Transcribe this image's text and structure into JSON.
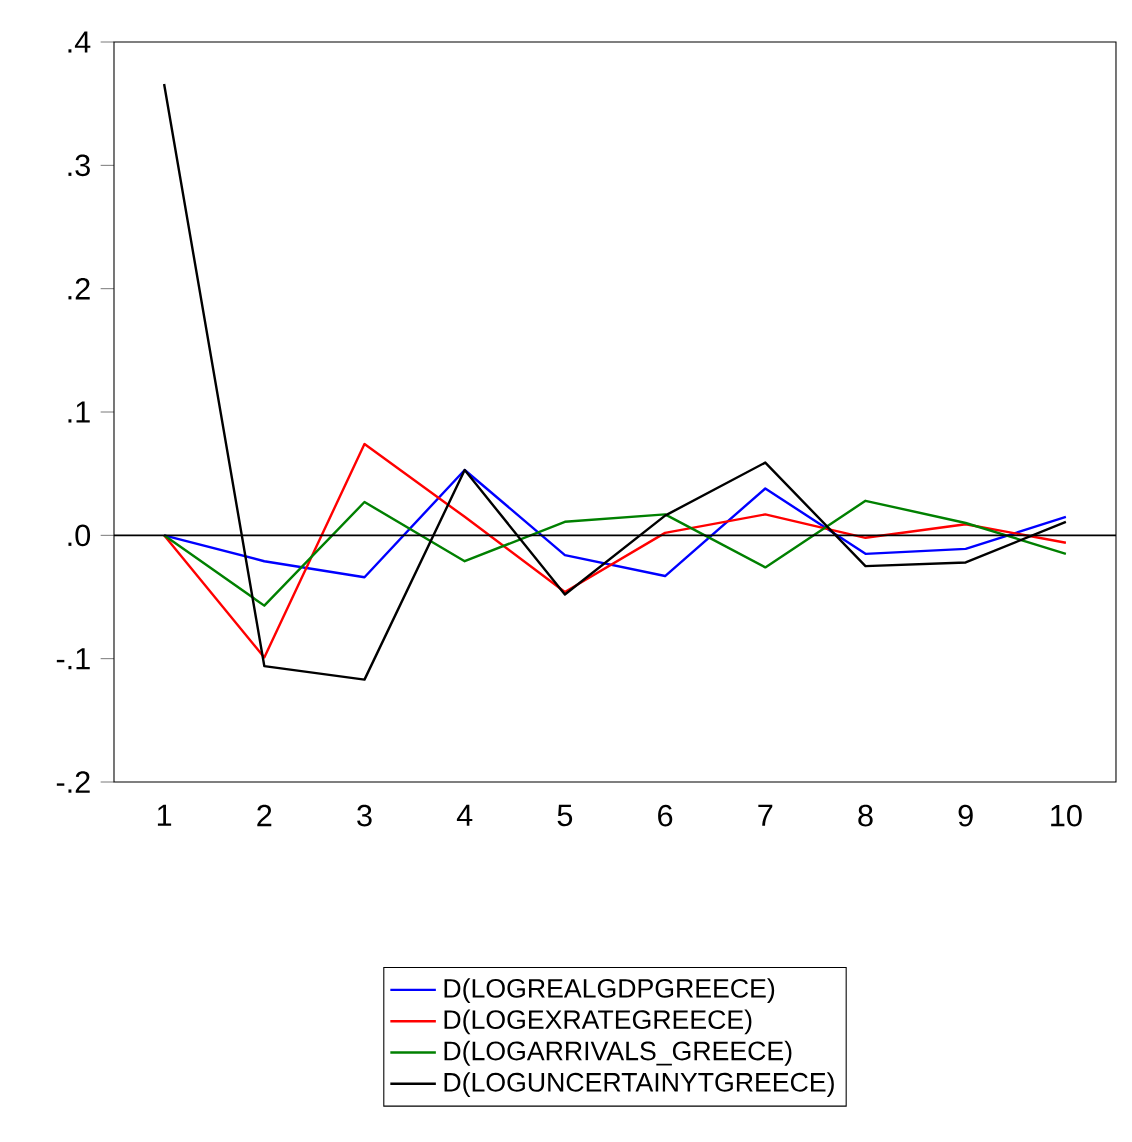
{
  "chart_data": {
    "type": "line",
    "categories": [
      "1",
      "2",
      "3",
      "4",
      "5",
      "6",
      "7",
      "8",
      "9",
      "10"
    ],
    "series": [
      {
        "name": "D(LOGREALGDPGREECE)",
        "color": "#0000ff",
        "values": [
          0,
          -0.021,
          -0.034,
          0.053,
          -0.016,
          -0.033,
          0.038,
          -0.015,
          -0.011,
          0.015
        ]
      },
      {
        "name": "D(LOGEXRATEGREECE)",
        "color": "#ff0000",
        "values": [
          0,
          -0.099,
          0.074,
          0.015,
          -0.046,
          0.002,
          0.017,
          -0.002,
          0.009,
          -0.006
        ]
      },
      {
        "name": "D(LOGARRIVALS_GREECE)",
        "color": "#008000",
        "values": [
          0,
          -0.057,
          0.027,
          -0.021,
          0.011,
          0.017,
          -0.026,
          0.028,
          0.01,
          -0.015
        ]
      },
      {
        "name": "D(LOGUNCERTAINYTGREECE)",
        "color": "#000000",
        "values": [
          0.366,
          -0.106,
          -0.117,
          0.053,
          -0.048,
          0.016,
          0.059,
          -0.025,
          -0.022,
          0.011
        ]
      }
    ],
    "ylim": [
      -0.2,
      0.4
    ],
    "yticks": [
      {
        "value": -0.2,
        "label": "-.2"
      },
      {
        "value": -0.1,
        "label": "-.1"
      },
      {
        "value": 0.0,
        "label": ".0"
      },
      {
        "value": 0.1,
        "label": ".1"
      },
      {
        "value": 0.2,
        "label": ".2"
      },
      {
        "value": 0.3,
        "label": ".3"
      },
      {
        "value": 0.4,
        "label": ".4"
      }
    ],
    "ref_lines": [
      {
        "axis": "y",
        "value": 0,
        "color": "#000000"
      }
    ],
    "legend": "bottom",
    "grid": false,
    "marker": "none",
    "line_style": "solid"
  }
}
